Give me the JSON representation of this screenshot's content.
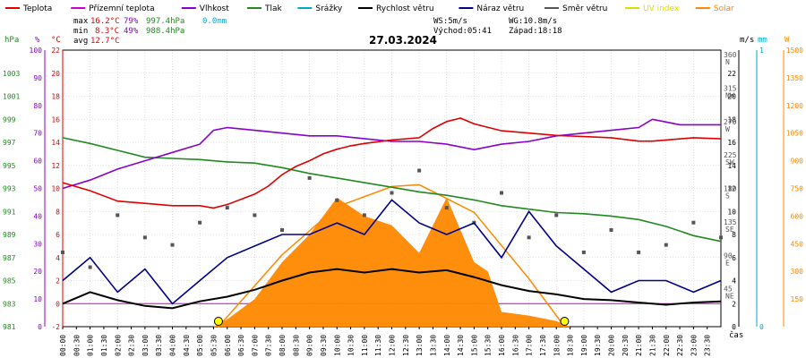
{
  "legend": [
    {
      "label": "Teplota",
      "color": "#dd0000"
    },
    {
      "label": "Přízemní teplota",
      "color": "#cc00cc"
    },
    {
      "label": "Vlhkost",
      "color": "#8800cc"
    },
    {
      "label": "Tlak",
      "color": "#228822"
    },
    {
      "label": "Srážky",
      "color": "#00aacc"
    },
    {
      "label": "Rychlost větru",
      "color": "#000000"
    },
    {
      "label": "Náraz větru",
      "color": "#000088"
    },
    {
      "label": "Směr větru",
      "color": "#555555"
    },
    {
      "label": "UV index",
      "color": "#dddd00"
    },
    {
      "label": "Solar",
      "color": "#ff8800"
    }
  ],
  "stats": {
    "max_label": "max",
    "max_temp": "16.2°C",
    "max_hum": "79%",
    "max_press": "997.4hPa",
    "precip": "0.0mm",
    "min_label": "min",
    "min_temp": "8.3°C",
    "min_hum": "49%",
    "min_press": "988.4hPa",
    "avg_label": "avg",
    "avg_temp": "12.7°C"
  },
  "wind": {
    "ws": "WS:5m/s",
    "wg": "WG:10.8m/s",
    "sunrise": "Východ:05:41",
    "sunset": "Západ:18:18"
  },
  "date": "27.03.2024",
  "axis_units": {
    "hpa": "hPa",
    "pct": "%",
    "degc": "°C",
    "ms": "m/s",
    "mm": "mm",
    "wm2": "W",
    "time": "čas"
  },
  "colors": {
    "grid": "#c8c8c8",
    "frame": "#000000",
    "pressure_axis": "#228822",
    "humidity_axis": "#8800cc",
    "temp_axis": "#dd0000",
    "wind_axis": "#000000",
    "precip_axis": "#00aacc",
    "solar_axis": "#ff8800",
    "zero_line": "#cc00cc"
  },
  "chart_data": {
    "type": "line",
    "x_hours": [
      0,
      0.5,
      1,
      1.5,
      2,
      2.5,
      3,
      3.5,
      4,
      4.5,
      5,
      5.5,
      6,
      6.5,
      7,
      7.5,
      8,
      8.5,
      9,
      9.5,
      10,
      10.5,
      11,
      11.5,
      12,
      12.5,
      13,
      13.5,
      14,
      14.5,
      15,
      15.5,
      16,
      16.5,
      17,
      17.5,
      18,
      18.5,
      19,
      19.5,
      20,
      20.5,
      21,
      21.5,
      22,
      22.5,
      23,
      23.5,
      24
    ],
    "x_tick_labels": [
      "00:00",
      "00:30",
      "01:00",
      "01:30",
      "02:00",
      "02:30",
      "03:00",
      "03:30",
      "04:00",
      "04:30",
      "05:00",
      "05:30",
      "06:00",
      "06:30",
      "07:00",
      "07:30",
      "08:00",
      "08:30",
      "09:00",
      "09:30",
      "10:00",
      "10:30",
      "11:00",
      "11:30",
      "12:00",
      "12:30",
      "13:00",
      "13:30",
      "14:00",
      "14:30",
      "15:00",
      "15:30",
      "16:00",
      "16:30",
      "17:00",
      "17:30",
      "18:00",
      "18:30",
      "19:00",
      "19:30",
      "20:00",
      "20:30",
      "21:00",
      "21:30",
      "22:00",
      "22:30",
      "23:00",
      "23:30"
    ],
    "x_range": [
      0,
      24
    ],
    "axes": {
      "pressure_hpa": {
        "min": 981,
        "max": 1005,
        "ticks": [
          981,
          983,
          985,
          987,
          989,
          991,
          993,
          995,
          997,
          999,
          1001,
          1003
        ]
      },
      "humidity_pct": {
        "min": 0,
        "max": 100,
        "ticks": [
          0,
          10,
          20,
          30,
          40,
          50,
          60,
          70,
          80,
          90,
          100
        ]
      },
      "temperature_c": {
        "min": -2,
        "max": 22,
        "ticks": [
          -2,
          0,
          2,
          4,
          6,
          8,
          10,
          12,
          14,
          16,
          18,
          20,
          22
        ]
      },
      "wind_dir_deg": {
        "ticks": [
          {
            "v": 45,
            "l": "NE"
          },
          {
            "v": 90,
            "l": "E"
          },
          {
            "v": 135,
            "l": "SE"
          },
          {
            "v": 180,
            "l": "S"
          },
          {
            "v": 225,
            "l": "SW"
          },
          {
            "v": 270,
            "l": "W"
          },
          {
            "v": 315,
            "l": "NW"
          },
          {
            "v": 360,
            "l": "N"
          }
        ]
      },
      "wind_speed_ms": {
        "min": 0,
        "max": 24,
        "ticks": [
          0,
          2,
          4,
          6,
          8,
          10,
          12,
          14,
          16,
          18,
          20,
          22
        ]
      },
      "precip_mm": {
        "min": 0,
        "max": 1,
        "ticks": [
          0,
          1
        ]
      },
      "solar_wm2": {
        "min": 0,
        "max": 1500,
        "ticks": [
          0,
          150,
          300,
          450,
          600,
          750,
          900,
          1050,
          1200,
          1350,
          1500
        ]
      }
    },
    "series": [
      {
        "name": "Teplota",
        "axis": "temperature_c",
        "color": "#dd0000",
        "x": [
          0,
          1,
          2,
          3,
          4,
          5,
          5.5,
          6,
          7,
          7.5,
          8,
          8.5,
          9,
          9.5,
          10,
          10.5,
          11,
          12,
          13,
          13.5,
          14,
          14.5,
          15,
          16,
          17,
          18,
          19,
          20,
          21,
          21.5,
          22,
          23,
          24
        ],
        "y": [
          10.5,
          9.8,
          8.9,
          8.7,
          8.5,
          8.5,
          8.3,
          8.6,
          9.5,
          10.2,
          11.2,
          11.9,
          12.4,
          13,
          13.4,
          13.7,
          13.9,
          14.2,
          14.4,
          15.2,
          15.8,
          16.1,
          15.6,
          15,
          14.8,
          14.6,
          14.5,
          14.4,
          14.1,
          14.1,
          14.2,
          14.4,
          14.3
        ]
      },
      {
        "name": "Vlhkost",
        "axis": "humidity_pct",
        "color": "#8800cc",
        "x": [
          0,
          1,
          2,
          3,
          4,
          5,
          5.5,
          6,
          7,
          8,
          9,
          10,
          11,
          12,
          13,
          14,
          15,
          16,
          17,
          18,
          19,
          20,
          21,
          21.5,
          22,
          22.5,
          23,
          24
        ],
        "y": [
          50,
          53,
          57,
          60,
          63,
          66,
          71,
          72,
          71,
          70,
          69,
          69,
          68,
          67,
          67,
          66,
          64,
          66,
          67,
          69,
          70,
          71,
          72,
          75,
          74,
          73,
          73,
          73
        ]
      },
      {
        "name": "Tlak",
        "axis": "pressure_hpa",
        "color": "#228822",
        "x": [
          0,
          1,
          2,
          3,
          4,
          5,
          6,
          7,
          8,
          9,
          10,
          11,
          12,
          13,
          14,
          15,
          16,
          17,
          18,
          19,
          20,
          21,
          22,
          23,
          24
        ],
        "y": [
          997.4,
          996.9,
          996.3,
          995.7,
          995.6,
          995.5,
          995.3,
          995.2,
          994.8,
          994.3,
          993.9,
          993.5,
          993.1,
          992.7,
          992.4,
          992,
          991.5,
          991.2,
          990.9,
          990.8,
          990.6,
          990.3,
          989.7,
          988.9,
          988.4
        ]
      },
      {
        "name": "Rychlost větru",
        "axis": "wind_speed_ms",
        "color": "#000000",
        "x": [
          0,
          1,
          2,
          3,
          4,
          5,
          6,
          7,
          8,
          9,
          10,
          11,
          12,
          13,
          14,
          15,
          16,
          17,
          18,
          19,
          20,
          21,
          22,
          23,
          24
        ],
        "y": [
          2,
          3,
          2.3,
          1.8,
          1.6,
          2.2,
          2.6,
          3.2,
          4,
          4.7,
          5,
          4.7,
          5,
          4.7,
          4.9,
          4.3,
          3.6,
          3.1,
          2.8,
          2.4,
          2.3,
          2.1,
          1.9,
          2.1,
          2.2
        ]
      },
      {
        "name": "Náraz větru",
        "axis": "wind_speed_ms",
        "color": "#000088",
        "x": [
          0,
          1,
          2,
          3,
          4,
          5,
          6,
          7,
          8,
          9,
          10,
          11,
          12,
          13,
          14,
          15,
          16,
          17,
          18,
          19,
          20,
          21,
          22,
          23,
          24
        ],
        "y": [
          4,
          6,
          3,
          5,
          2,
          4,
          6,
          7,
          8,
          8,
          9,
          8,
          11,
          9,
          8,
          9,
          6,
          10,
          7,
          5,
          3,
          4,
          4,
          3,
          4
        ]
      },
      {
        "name": "Směr větru",
        "axis": "wind_dir_deg",
        "color": "#555555",
        "x": [
          0,
          1,
          2,
          3,
          4,
          5,
          6,
          7,
          8,
          9,
          10,
          11,
          12,
          13,
          14,
          15,
          16,
          17,
          18,
          19,
          20,
          21,
          22,
          23,
          24
        ],
        "y": [
          100,
          80,
          150,
          120,
          110,
          140,
          160,
          150,
          130,
          200,
          170,
          150,
          180,
          210,
          160,
          140,
          180,
          120,
          150,
          100,
          130,
          100,
          110,
          140,
          120
        ]
      },
      {
        "name": "Solar",
        "axis": "solar_wm2",
        "color": "#ff8800",
        "x": [
          5.5,
          6,
          7,
          8,
          9,
          10,
          11,
          12,
          13,
          14,
          15,
          15.5,
          16,
          17,
          18,
          18.5
        ],
        "y": [
          0,
          40,
          150,
          350,
          500,
          700,
          600,
          550,
          400,
          700,
          350,
          300,
          80,
          60,
          30,
          0
        ]
      }
    ],
    "theoretical_solar": {
      "x": [
        5.68,
        8,
        10,
        12,
        13,
        15,
        17,
        18.3
      ],
      "y": [
        0,
        390,
        650,
        760,
        770,
        620,
        260,
        0
      ]
    },
    "sun_markers_hours": [
      5.68,
      18.3
    ]
  }
}
